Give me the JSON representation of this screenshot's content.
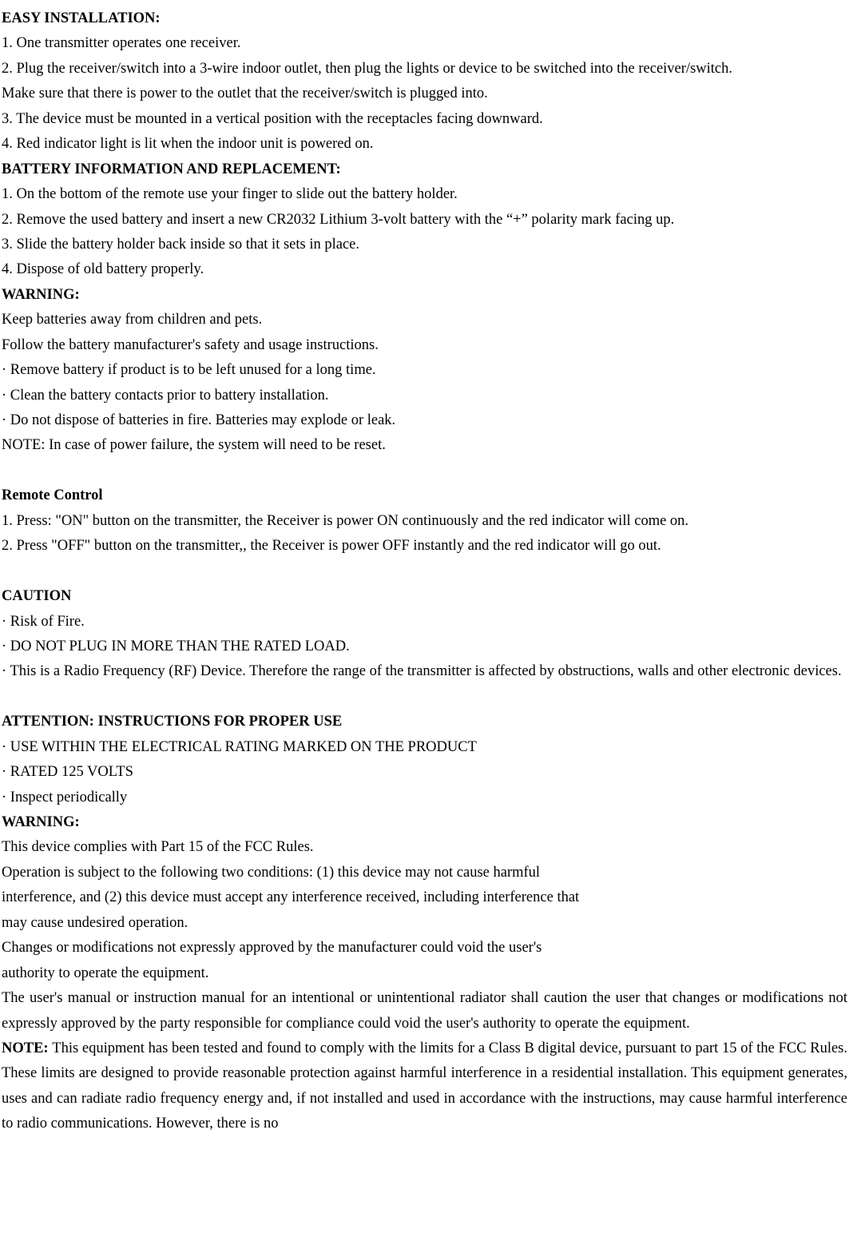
{
  "doc": {
    "s1_title": "EASY INSTALLATION:",
    "s1_l1": "1. One transmitter operates one receiver.",
    "s1_l2": "2. Plug the receiver/switch into a 3-wire indoor outlet, then plug the lights or device to be switched into the receiver/switch.",
    "s1_l3": "Make sure that there is power to the outlet that the receiver/switch is plugged into.",
    "s1_l4": "3. The device must be mounted in a vertical position with the receptacles facing downward.",
    "s1_l5": "4. Red indicator light is lit when the indoor unit is powered on.",
    "s2_title": "BATTERY INFORMATION AND REPLACEMENT:",
    "s2_l1": "1. On the bottom of the remote use your finger to slide out the battery holder.",
    "s2_l2": "2. Remove the used battery and insert a new CR2032 Lithium 3-volt battery with the “+” polarity mark facing up.",
    "s2_l3": "3. Slide the battery holder back inside so that it sets in place.",
    "s2_l4": "4. Dispose of old battery properly.",
    "s3_title": "WARNING:",
    "s3_l1": "Keep batteries away from children and pets.",
    "s3_l2": "Follow the battery manufacturer's safety and usage instructions.",
    "s3_l3": "· Remove battery if product is to be left unused for a long time.",
    "s3_l4": "· Clean the battery contacts prior to battery installation.",
    "s3_l5": "· Do not dispose of batteries in fire. Batteries may explode or leak.",
    "s3_l6": "NOTE: In case of power failure, the system will need to be reset.",
    "s4_title": "Remote Control",
    "s4_l1": "1. Press: \"ON\" button on the transmitter, the Receiver is power ON continuously and the red indicator will come on.",
    "s4_l2": "2. Press \"OFF\" button on the transmitter,, the Receiver is power OFF instantly and the red indicator will go out.",
    "s5_title": "CAUTION",
    "s5_l1": "· Risk of Fire.",
    "s5_l2": "· DO NOT PLUG IN MORE THAN THE RATED LOAD.",
    "s5_l3": "· This is a Radio Frequency (RF) Device. Therefore the range of the transmitter is affected by obstructions, walls and other electronic devices.",
    "s6_title": "ATTENTION: INSTRUCTIONS FOR PROPER USE",
    "s6_l1": "· USE WITHIN THE ELECTRICAL RATING MARKED ON THE PRODUCT",
    "s6_l2": "· RATED 125 VOLTS",
    "s6_l3": "· Inspect periodically",
    "s7_title": "WARNING:",
    "s7_l1": "This device complies with Part 15 of the FCC Rules.",
    "s7_l2": "Operation is subject to the following two conditions: (1) this device may not cause harmful",
    "s7_l3": "interference, and (2) this device must accept any interference received, including interference that",
    "s7_l4": "may cause undesired operation.",
    "s7_l5": "Changes or modifications not expressly approved by the manufacturer could void the user's",
    "s7_l6": "authority to operate the equipment.",
    "s7_l7": "The user's manual or instruction manual for an intentional or unintentional radiator shall caution the user that changes or modifications not expressly approved by the party responsible for compliance could void the user's authority to operate the equipment.",
    "s8_note_label": "NOTE: ",
    "s8_note_body": "This equipment has been tested and found to comply with the limits for a Class B digital device, pursuant to part 15 of the FCC Rules. These limits are designed to provide reasonable protection against harmful interference in a residential installation. This equipment generates, uses and can radiate radio frequency energy and, if not installed and used in accordance with the instructions, may cause harmful interference to radio communications. However, there is no"
  }
}
